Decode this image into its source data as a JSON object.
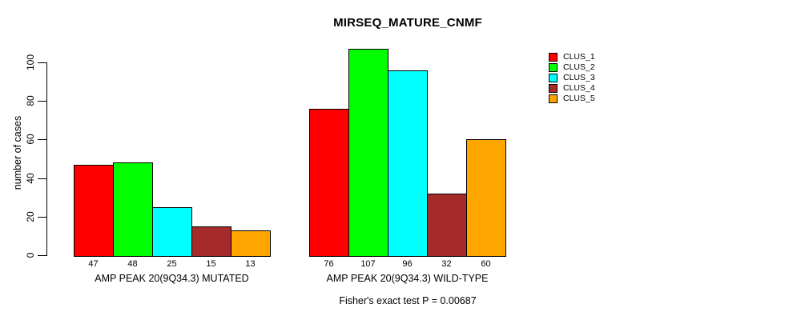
{
  "chart_data": {
    "type": "bar",
    "title": "MIRSEQ_MATURE_CNMF",
    "ylabel": "number of cases",
    "xlabel": "",
    "ylim": [
      0,
      110
    ],
    "yticks": [
      0,
      20,
      40,
      60,
      80,
      100
    ],
    "grid": false,
    "legend_position": "top-right",
    "legend_entries": [
      "CLUS_1",
      "CLUS_2",
      "CLUS_3",
      "CLUS_4",
      "CLUS_5"
    ],
    "series_colors": [
      "#ff0000",
      "#00ff00",
      "#00ffff",
      "#a52a2a",
      "#ffa500"
    ],
    "bar_border_color": "#000000",
    "groups": [
      {
        "label": "AMP PEAK 20(9Q34.3) MUTATED",
        "values": [
          47,
          48,
          25,
          15,
          13
        ]
      },
      {
        "label": "AMP PEAK 20(9Q34.3) WILD-TYPE",
        "values": [
          76,
          107,
          96,
          32,
          60
        ]
      }
    ],
    "annotation": "Fisher's exact test P = 0.00687"
  }
}
